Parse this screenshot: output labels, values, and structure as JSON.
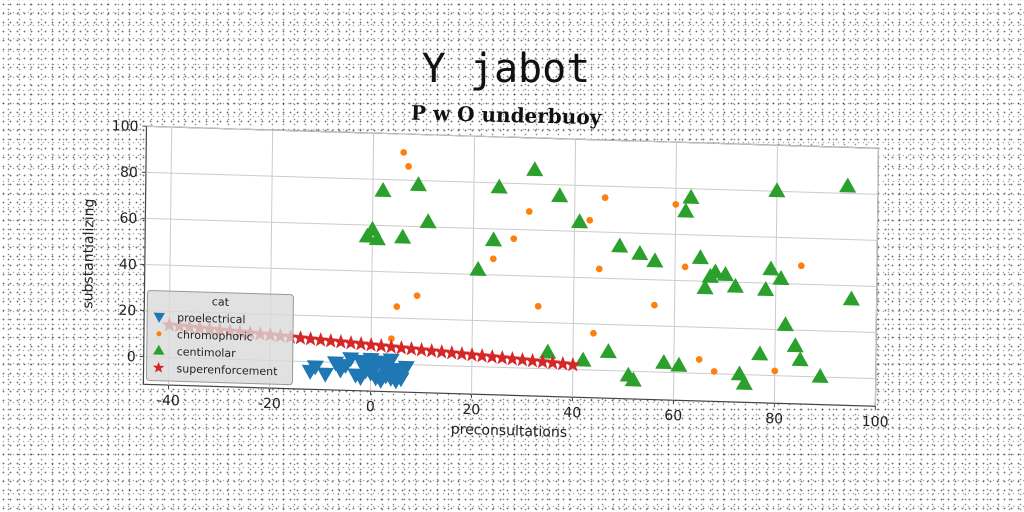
{
  "chart_data": {
    "type": "scatter",
    "title": "Y jabot",
    "subtitle": "P w O underbuoy",
    "xlabel": "preconsultations",
    "ylabel": "substantializing",
    "xlim": [
      -45,
      100
    ],
    "ylim": [
      -12,
      100
    ],
    "xticks": [
      -40,
      -20,
      0,
      20,
      40,
      60,
      80,
      100
    ],
    "yticks": [
      0,
      20,
      40,
      60,
      80,
      100
    ],
    "grid": true,
    "legend": {
      "title": "cat",
      "position": "lower-left"
    },
    "series": [
      {
        "name": "proelectrical",
        "marker": "triangle-down",
        "color": "#1f77b4",
        "points": [
          [
            -12,
            -4
          ],
          [
            -11,
            -2
          ],
          [
            -9,
            -5
          ],
          [
            -6,
            -3
          ],
          [
            -5,
            -1
          ],
          [
            -4,
            2
          ],
          [
            -3,
            -5
          ],
          [
            -2,
            -6
          ],
          [
            -1,
            0
          ],
          [
            0,
            2
          ],
          [
            0,
            -4
          ],
          [
            1,
            -6
          ],
          [
            1,
            -1
          ],
          [
            2,
            1
          ],
          [
            2,
            -7
          ],
          [
            3,
            -3
          ],
          [
            3,
            0
          ],
          [
            4,
            -6
          ],
          [
            4,
            2
          ],
          [
            5,
            -2
          ],
          [
            5,
            -7
          ],
          [
            6,
            -4
          ],
          [
            7,
            -1
          ],
          [
            -7,
            0
          ],
          [
            -2,
            1
          ],
          [
            3,
            -5
          ],
          [
            6,
            -6
          ],
          [
            -1,
            -3
          ]
        ]
      },
      {
        "name": "chromophoric",
        "marker": "circle",
        "color": "#ff7f0e",
        "points": [
          [
            6,
            92
          ],
          [
            7,
            86
          ],
          [
            4,
            11
          ],
          [
            5,
            25
          ],
          [
            9,
            30
          ],
          [
            24,
            47
          ],
          [
            28,
            56
          ],
          [
            31,
            68
          ],
          [
            33,
            27
          ],
          [
            43,
            65
          ],
          [
            44,
            16
          ],
          [
            45,
            44
          ],
          [
            46,
            75
          ],
          [
            56,
            29
          ],
          [
            60,
            73
          ],
          [
            62,
            46
          ],
          [
            65,
            6
          ],
          [
            68,
            1
          ],
          [
            80,
            2
          ],
          [
            85,
            48
          ]
        ]
      },
      {
        "name": "centimolar",
        "marker": "triangle-up",
        "color": "#2ca02c",
        "points": [
          [
            -1,
            55
          ],
          [
            0,
            58
          ],
          [
            1,
            54
          ],
          [
            2,
            75
          ],
          [
            6,
            55
          ],
          [
            9,
            78
          ],
          [
            11,
            62
          ],
          [
            21,
            42
          ],
          [
            24,
            55
          ],
          [
            25,
            78
          ],
          [
            32,
            86
          ],
          [
            37,
            75
          ],
          [
            35,
            7
          ],
          [
            41,
            64
          ],
          [
            42,
            4
          ],
          [
            47,
            8
          ],
          [
            49,
            54
          ],
          [
            51,
            -2
          ],
          [
            52,
            -4
          ],
          [
            53,
            51
          ],
          [
            56,
            48
          ],
          [
            58,
            4
          ],
          [
            61,
            3
          ],
          [
            62,
            70
          ],
          [
            63,
            76
          ],
          [
            65,
            50
          ],
          [
            66,
            37
          ],
          [
            67,
            42
          ],
          [
            68,
            44
          ],
          [
            70,
            43
          ],
          [
            72,
            38
          ],
          [
            73,
            0
          ],
          [
            74,
            -4
          ],
          [
            77,
            9
          ],
          [
            78,
            37
          ],
          [
            79,
            46
          ],
          [
            80,
            80
          ],
          [
            81,
            42
          ],
          [
            82,
            22
          ],
          [
            84,
            13
          ],
          [
            85,
            7
          ],
          [
            89,
            0
          ],
          [
            94,
            83
          ],
          [
            95,
            34
          ]
        ]
      },
      {
        "name": "superenforcement",
        "marker": "star",
        "color": "#d62728",
        "points": [
          [
            -40,
            14
          ],
          [
            -38,
            13.7
          ],
          [
            -36,
            13.4
          ],
          [
            -34,
            13.1
          ],
          [
            -32,
            12.8
          ],
          [
            -30,
            12.5
          ],
          [
            -28,
            12.2
          ],
          [
            -26,
            11.9
          ],
          [
            -24,
            11.6
          ],
          [
            -22,
            11.3
          ],
          [
            -20,
            11
          ],
          [
            -18,
            10.7
          ],
          [
            -16,
            10.4
          ],
          [
            -14,
            10.1
          ],
          [
            -12,
            9.8
          ],
          [
            -10,
            9.5
          ],
          [
            -8,
            9.2
          ],
          [
            -6,
            8.9
          ],
          [
            -4,
            8.6
          ],
          [
            -2,
            8.3
          ],
          [
            0,
            8
          ],
          [
            2,
            7.7
          ],
          [
            4,
            7.4
          ],
          [
            6,
            7.1
          ],
          [
            8,
            6.8
          ],
          [
            10,
            6.5
          ],
          [
            12,
            6.2
          ],
          [
            14,
            5.9
          ],
          [
            16,
            5.6
          ],
          [
            18,
            5.3
          ],
          [
            20,
            5
          ],
          [
            22,
            4.7
          ],
          [
            24,
            4.4
          ],
          [
            26,
            4.1
          ],
          [
            28,
            3.8
          ],
          [
            30,
            3.5
          ],
          [
            32,
            3.2
          ],
          [
            34,
            2.9
          ],
          [
            36,
            2.6
          ],
          [
            38,
            2.3
          ],
          [
            40,
            2
          ]
        ]
      }
    ]
  }
}
